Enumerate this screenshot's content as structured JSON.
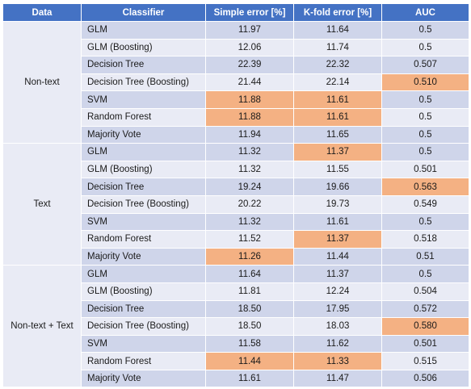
{
  "headers": [
    "Data",
    "Classifier",
    "Simple error [%]",
    "K-fold error [%]",
    "AUC"
  ],
  "highlight_color": "#f4b183",
  "groups": [
    {
      "label": "Non-text",
      "rows": [
        {
          "classifier": "GLM",
          "simple": "11.97",
          "kfold": "11.64",
          "auc": "0.5",
          "hl": []
        },
        {
          "classifier": "GLM (Boosting)",
          "simple": "12.06",
          "kfold": "11.74",
          "auc": "0.5",
          "hl": []
        },
        {
          "classifier": "Decision Tree",
          "simple": "22.39",
          "kfold": "22.32",
          "auc": "0.507",
          "hl": []
        },
        {
          "classifier": "Decision Tree (Boosting)",
          "simple": "21.44",
          "kfold": "22.14",
          "auc": "0.510",
          "hl": [
            "auc"
          ]
        },
        {
          "classifier": "SVM",
          "simple": "11.88",
          "kfold": "11.61",
          "auc": "0.5",
          "hl": [
            "simple",
            "kfold"
          ]
        },
        {
          "classifier": "Random Forest",
          "simple": "11.88",
          "kfold": "11.61",
          "auc": "0.5",
          "hl": [
            "simple",
            "kfold"
          ]
        },
        {
          "classifier": "Majority Vote",
          "simple": "11.94",
          "kfold": "11.65",
          "auc": "0.5",
          "hl": []
        }
      ]
    },
    {
      "label": "Text",
      "rows": [
        {
          "classifier": "GLM",
          "simple": "11.32",
          "kfold": "11.37",
          "auc": "0.5",
          "hl": [
            "kfold"
          ]
        },
        {
          "classifier": "GLM (Boosting)",
          "simple": "11.32",
          "kfold": "11.55",
          "auc": "0.501",
          "hl": []
        },
        {
          "classifier": "Decision Tree",
          "simple": "19.24",
          "kfold": "19.66",
          "auc": "0.563",
          "hl": [
            "auc"
          ]
        },
        {
          "classifier": "Decision Tree (Boosting)",
          "simple": "20.22",
          "kfold": "19.73",
          "auc": "0.549",
          "hl": []
        },
        {
          "classifier": "SVM",
          "simple": "11.32",
          "kfold": "11.61",
          "auc": "0.5",
          "hl": []
        },
        {
          "classifier": "Random Forest",
          "simple": "11.52",
          "kfold": "11.37",
          "auc": "0.518",
          "hl": [
            "kfold"
          ]
        },
        {
          "classifier": "Majority Vote",
          "simple": "11.26",
          "kfold": "11.44",
          "auc": "0.51",
          "hl": [
            "simple"
          ]
        }
      ]
    },
    {
      "label": "Non-text + Text",
      "rows": [
        {
          "classifier": "GLM",
          "simple": "11.64",
          "kfold": "11.37",
          "auc": "0.5",
          "hl": []
        },
        {
          "classifier": "GLM (Boosting)",
          "simple": "11.81",
          "kfold": "12.24",
          "auc": "0.504",
          "hl": []
        },
        {
          "classifier": "Decision Tree",
          "simple": "18.50",
          "kfold": "17.95",
          "auc": "0.572",
          "hl": []
        },
        {
          "classifier": "Decision Tree (Boosting)",
          "simple": "18.50",
          "kfold": "18.03",
          "auc": "0.580",
          "hl": [
            "auc"
          ]
        },
        {
          "classifier": "SVM",
          "simple": "11.58",
          "kfold": "11.62",
          "auc": "0.501",
          "hl": []
        },
        {
          "classifier": "Random Forest",
          "simple": "11.44",
          "kfold": "11.33",
          "auc": "0.515",
          "hl": [
            "simple",
            "kfold"
          ]
        },
        {
          "classifier": "Majority Vote",
          "simple": "11.61",
          "kfold": "11.47",
          "auc": "0.506",
          "hl": []
        }
      ]
    }
  ]
}
